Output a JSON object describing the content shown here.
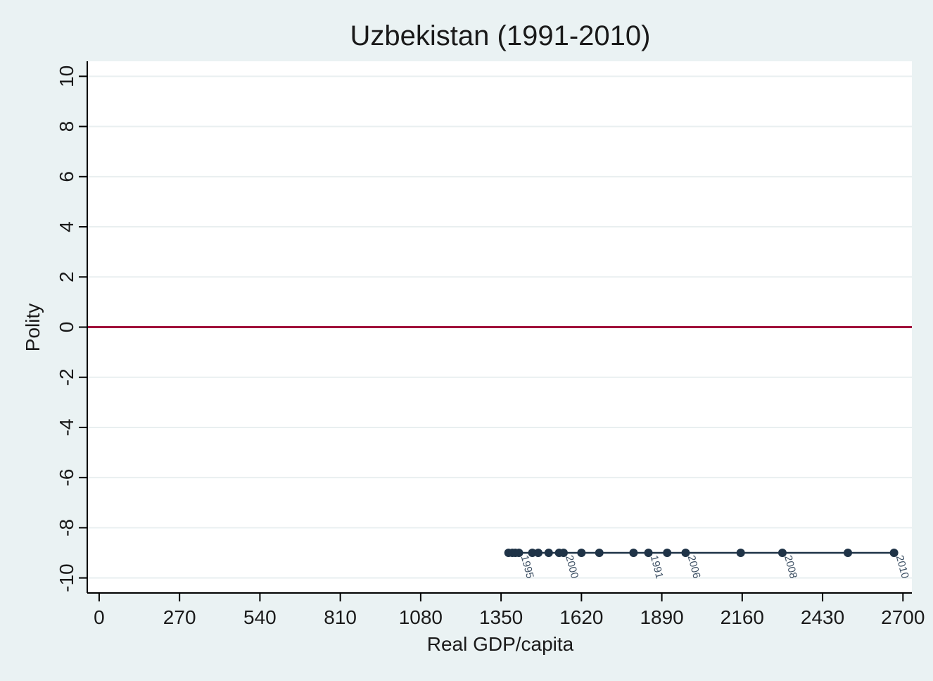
{
  "chart_data": {
    "type": "scatter",
    "title": "Uzbekistan (1991-2010)",
    "xlabel": "Real GDP/capita",
    "ylabel": "Polity",
    "xlim": [
      -40,
      2730
    ],
    "ylim": [
      -10.6,
      10.6
    ],
    "x_ticks": [
      0,
      270,
      540,
      810,
      1080,
      1350,
      1620,
      1890,
      2160,
      2430,
      2700
    ],
    "y_ticks": [
      -10,
      -8,
      -6,
      -4,
      -2,
      0,
      2,
      4,
      6,
      8,
      10
    ],
    "grid": true,
    "reference_line": {
      "y": 0,
      "color": "#a0103a"
    },
    "marker_color": "#1f3347",
    "line_color": "#1f3347",
    "series": [
      {
        "points": [
          {
            "x": 1375,
            "y": -9,
            "label": ""
          },
          {
            "x": 1388,
            "y": -9,
            "label": ""
          },
          {
            "x": 1398,
            "y": -9,
            "label": ""
          },
          {
            "x": 1410,
            "y": -9,
            "label": "1995"
          },
          {
            "x": 1455,
            "y": -9,
            "label": ""
          },
          {
            "x": 1475,
            "y": -9,
            "label": ""
          },
          {
            "x": 1510,
            "y": -9,
            "label": ""
          },
          {
            "x": 1545,
            "y": -9,
            "label": ""
          },
          {
            "x": 1560,
            "y": -9,
            "label": "2000"
          },
          {
            "x": 1620,
            "y": -9,
            "label": ""
          },
          {
            "x": 1680,
            "y": -9,
            "label": ""
          },
          {
            "x": 1795,
            "y": -9,
            "label": ""
          },
          {
            "x": 1845,
            "y": -9,
            "label": "1991"
          },
          {
            "x": 1908,
            "y": -9,
            "label": ""
          },
          {
            "x": 1970,
            "y": -9,
            "label": "2006"
          },
          {
            "x": 2155,
            "y": -9,
            "label": ""
          },
          {
            "x": 2295,
            "y": -9,
            "label": "2008"
          },
          {
            "x": 2515,
            "y": -9,
            "label": ""
          },
          {
            "x": 2670,
            "y": -9,
            "label": "2010"
          }
        ]
      }
    ]
  }
}
